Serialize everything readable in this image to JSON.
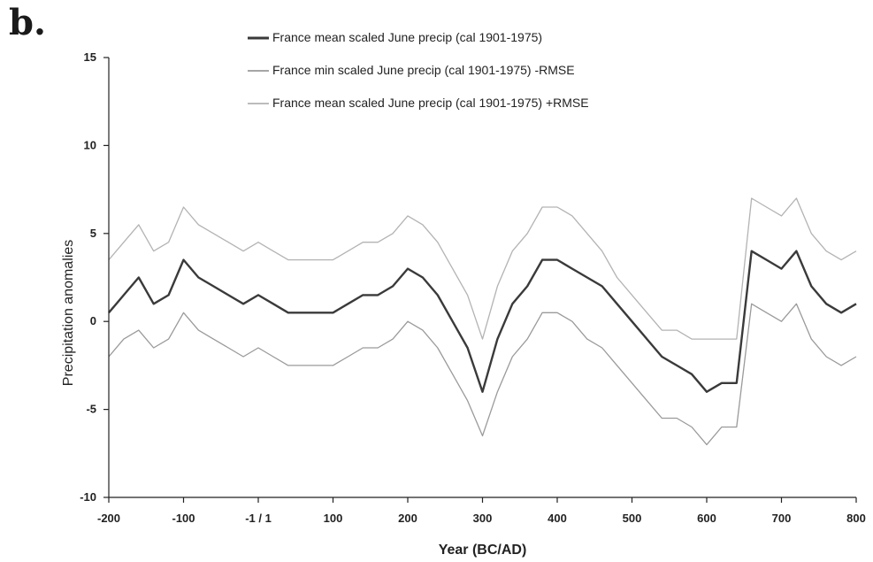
{
  "panel_label": "b.",
  "chart_data": {
    "type": "line",
    "xlabel": "Year (BC/AD)",
    "ylabel": "Precipitation anomalies",
    "xlim": [
      -200,
      800
    ],
    "ylim": [
      -10,
      15
    ],
    "x_ticks": [
      {
        "value": -200,
        "label": "-200"
      },
      {
        "value": -100,
        "label": "-100"
      },
      {
        "value": 0,
        "label": "-1 / 1"
      },
      {
        "value": 100,
        "label": "100"
      },
      {
        "value": 200,
        "label": "200"
      },
      {
        "value": 300,
        "label": "300"
      },
      {
        "value": 400,
        "label": "400"
      },
      {
        "value": 500,
        "label": "500"
      },
      {
        "value": 600,
        "label": "600"
      },
      {
        "value": 700,
        "label": "700"
      },
      {
        "value": 800,
        "label": "800"
      }
    ],
    "y_ticks": [
      {
        "value": -10,
        "label": "-10"
      },
      {
        "value": -5,
        "label": "-5"
      },
      {
        "value": 0,
        "label": "0"
      },
      {
        "value": 5,
        "label": "5"
      },
      {
        "value": 10,
        "label": "10"
      },
      {
        "value": 15,
        "label": "15"
      }
    ],
    "grid": false,
    "legend_position": "top-center",
    "x": [
      -200,
      -180,
      -160,
      -140,
      -120,
      -100,
      -80,
      -60,
      -40,
      -20,
      0,
      20,
      40,
      60,
      80,
      100,
      120,
      140,
      160,
      180,
      200,
      220,
      240,
      260,
      280,
      300,
      320,
      340,
      360,
      380,
      400,
      420,
      440,
      460,
      480,
      500,
      520,
      540,
      560,
      580,
      600,
      620,
      640,
      660,
      680,
      700,
      720,
      740,
      760,
      780,
      800
    ],
    "series": [
      {
        "name": "France mean scaled June precip (cal 1901-1975)",
        "color": "#3a3a3a",
        "values": [
          0.5,
          1.5,
          2.5,
          1.0,
          1.5,
          3.5,
          2.5,
          2.0,
          1.5,
          1.0,
          1.5,
          1.0,
          0.5,
          0.5,
          0.5,
          0.5,
          1.0,
          1.5,
          1.5,
          2.0,
          3.0,
          2.5,
          1.5,
          0.0,
          -1.5,
          -4.0,
          -1.0,
          1.0,
          2.0,
          3.5,
          3.5,
          3.0,
          2.5,
          2.0,
          1.0,
          0.0,
          -1.0,
          -2.0,
          -2.5,
          -3.0,
          -4.0,
          -3.5,
          -3.5,
          4.0,
          3.5,
          3.0,
          4.0,
          2.0,
          1.0,
          0.5,
          1.0
        ]
      },
      {
        "name": "France min scaled June precip (cal 1901-1975) -RMSE",
        "color": "#9a9a9a",
        "values": [
          -2.0,
          -1.0,
          -0.5,
          -1.5,
          -1.0,
          0.5,
          -0.5,
          -1.0,
          -1.5,
          -2.0,
          -1.5,
          -2.0,
          -2.5,
          -2.5,
          -2.5,
          -2.5,
          -2.0,
          -1.5,
          -1.5,
          -1.0,
          0.0,
          -0.5,
          -1.5,
          -3.0,
          -4.5,
          -6.5,
          -4.0,
          -2.0,
          -1.0,
          0.5,
          0.5,
          0.0,
          -1.0,
          -1.5,
          -2.5,
          -3.5,
          -4.5,
          -5.5,
          -5.5,
          -6.0,
          -7.0,
          -6.0,
          -6.0,
          1.0,
          0.5,
          0.0,
          1.0,
          -1.0,
          -2.0,
          -2.5,
          -2.0
        ]
      },
      {
        "name": "France mean scaled June precip (cal 1901-1975) +RMSE",
        "color": "#b3b3b3",
        "values": [
          3.5,
          4.5,
          5.5,
          4.0,
          4.5,
          6.5,
          5.5,
          5.0,
          4.5,
          4.0,
          4.5,
          4.0,
          3.5,
          3.5,
          3.5,
          3.5,
          4.0,
          4.5,
          4.5,
          5.0,
          6.0,
          5.5,
          4.5,
          3.0,
          1.5,
          -1.0,
          2.0,
          4.0,
          5.0,
          6.5,
          6.5,
          6.0,
          5.0,
          4.0,
          2.5,
          1.5,
          0.5,
          -0.5,
          -0.5,
          -1.0,
          -1.0,
          -1.0,
          -1.0,
          7.0,
          6.5,
          6.0,
          7.0,
          5.0,
          4.0,
          3.5,
          4.0
        ]
      }
    ]
  }
}
